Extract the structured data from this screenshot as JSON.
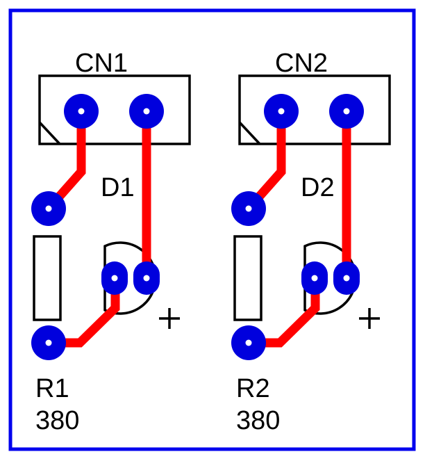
{
  "board": {
    "outline_color": "#0000ee",
    "trace_color": "#ff0000",
    "pad_color": "#0000dd",
    "silk_color": "#000000"
  },
  "units": [
    {
      "connector_label": "CN1",
      "led_label": "D1",
      "resistor_label": "R1",
      "resistor_value": "380",
      "polarity_mark": "+"
    },
    {
      "connector_label": "CN2",
      "led_label": "D2",
      "resistor_label": "R2",
      "resistor_value": "380",
      "polarity_mark": "+"
    }
  ]
}
